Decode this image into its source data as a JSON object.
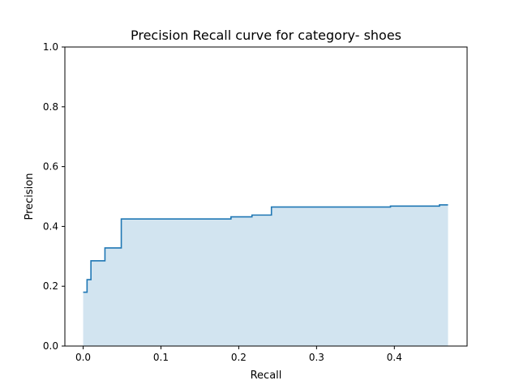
{
  "chart_data": {
    "type": "area",
    "title": "Precision Recall curve for category- shoes",
    "xlabel": "Recall",
    "ylabel": "Precision",
    "xlim": [
      -0.0235,
      0.4935
    ],
    "ylim": [
      0.0,
      1.0
    ],
    "x_ticks": [
      0.0,
      0.1,
      0.2,
      0.3,
      0.4
    ],
    "x_tick_labels": [
      "0.0",
      "0.1",
      "0.2",
      "0.3",
      "0.4"
    ],
    "y_ticks": [
      0.0,
      0.2,
      0.4,
      0.6,
      0.8,
      1.0
    ],
    "y_tick_labels": [
      "0.0",
      "0.2",
      "0.4",
      "0.6",
      "0.8",
      "1.0"
    ],
    "grid": false,
    "legend": "none",
    "step": "post",
    "series": [
      {
        "line_color": "#1f77b4",
        "fill_color": "#1f77b4",
        "fill_alpha": 0.2,
        "x": [
          0.0,
          0.005,
          0.01,
          0.028,
          0.049,
          0.19,
          0.217,
          0.242,
          0.395,
          0.458,
          0.469
        ],
        "y": [
          0.18,
          0.222,
          0.285,
          0.328,
          0.425,
          0.432,
          0.438,
          0.465,
          0.468,
          0.472,
          0.472
        ]
      }
    ]
  }
}
